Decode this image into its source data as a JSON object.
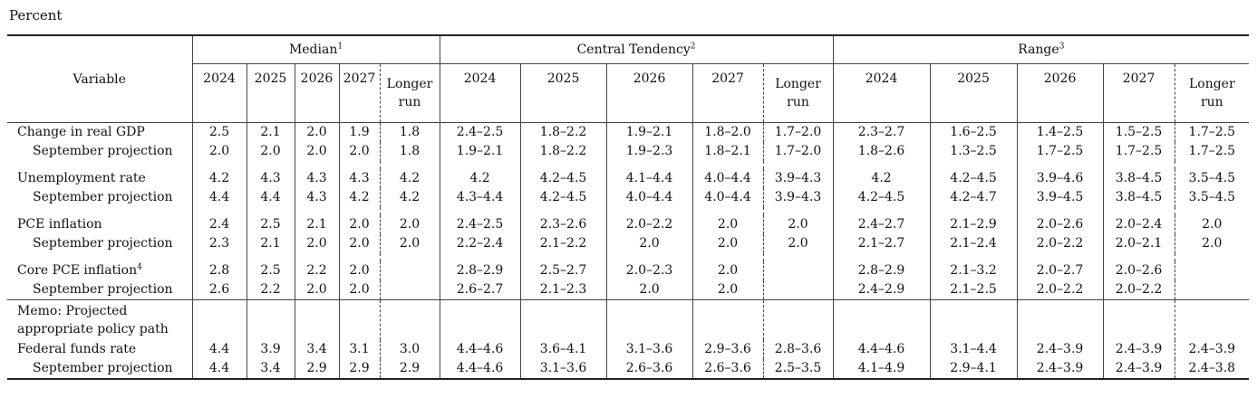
{
  "unit_label": "Percent",
  "headers": {
    "variable": "Variable",
    "median": "Median",
    "median_note": "1",
    "central_tendency": "Central Tendency",
    "central_tendency_note": "2",
    "range": "Range",
    "range_note": "3",
    "years": [
      "2024",
      "2025",
      "2026",
      "2027"
    ],
    "longer_run_line1": "Longer",
    "longer_run_line2": "run"
  },
  "rows": {
    "gdp": {
      "label": "Change in real GDP",
      "median": [
        "2.5",
        "2.1",
        "2.0",
        "1.9",
        "1.8"
      ],
      "central": [
        "2.4–2.5",
        "1.8–2.2",
        "1.9–2.1",
        "1.8–2.0",
        "1.7–2.0"
      ],
      "range": [
        "2.3–2.7",
        "1.6–2.5",
        "1.4–2.5",
        "1.5–2.5",
        "1.7–2.5"
      ]
    },
    "gdp_sep": {
      "label": "September projection",
      "median": [
        "2.0",
        "2.0",
        "2.0",
        "2.0",
        "1.8"
      ],
      "central": [
        "1.9–2.1",
        "1.8–2.2",
        "1.9–2.3",
        "1.8–2.1",
        "1.7–2.0"
      ],
      "range": [
        "1.8–2.6",
        "1.3–2.5",
        "1.7–2.5",
        "1.7–2.5",
        "1.7–2.5"
      ]
    },
    "unemp": {
      "label": "Unemployment rate",
      "median": [
        "4.2",
        "4.3",
        "4.3",
        "4.3",
        "4.2"
      ],
      "central": [
        "4.2",
        "4.2–4.5",
        "4.1–4.4",
        "4.0–4.4",
        "3.9–4.3"
      ],
      "range": [
        "4.2",
        "4.2–4.5",
        "3.9–4.6",
        "3.8–4.5",
        "3.5–4.5"
      ]
    },
    "unemp_sep": {
      "label": "September projection",
      "median": [
        "4.4",
        "4.4",
        "4.3",
        "4.2",
        "4.2"
      ],
      "central": [
        "4.3–4.4",
        "4.2–4.5",
        "4.0–4.4",
        "4.0–4.4",
        "3.9–4.3"
      ],
      "range": [
        "4.2–4.5",
        "4.2–4.7",
        "3.9–4.5",
        "3.8–4.5",
        "3.5–4.5"
      ]
    },
    "pce": {
      "label": "PCE inflation",
      "median": [
        "2.4",
        "2.5",
        "2.1",
        "2.0",
        "2.0"
      ],
      "central": [
        "2.4–2.5",
        "2.3–2.6",
        "2.0–2.2",
        "2.0",
        "2.0"
      ],
      "range": [
        "2.4–2.7",
        "2.1–2.9",
        "2.0–2.6",
        "2.0–2.4",
        "2.0"
      ]
    },
    "pce_sep": {
      "label": "September projection",
      "median": [
        "2.3",
        "2.1",
        "2.0",
        "2.0",
        "2.0"
      ],
      "central": [
        "2.2–2.4",
        "2.1–2.2",
        "2.0",
        "2.0",
        "2.0"
      ],
      "range": [
        "2.1–2.7",
        "2.1–2.4",
        "2.0–2.2",
        "2.0–2.1",
        "2.0"
      ]
    },
    "core": {
      "label": "Core PCE inflation",
      "note": "4",
      "median": [
        "2.8",
        "2.5",
        "2.2",
        "2.0",
        ""
      ],
      "central": [
        "2.8–2.9",
        "2.5–2.7",
        "2.0–2.3",
        "2.0",
        ""
      ],
      "range": [
        "2.8–2.9",
        "2.1–3.2",
        "2.0–2.7",
        "2.0–2.6",
        ""
      ]
    },
    "core_sep": {
      "label": "September projection",
      "median": [
        "2.6",
        "2.2",
        "2.0",
        "2.0",
        ""
      ],
      "central": [
        "2.6–2.7",
        "2.1–2.3",
        "2.0",
        "2.0",
        ""
      ],
      "range": [
        "2.4–2.9",
        "2.1–2.5",
        "2.0–2.2",
        "2.0–2.2",
        ""
      ]
    },
    "ffr": {
      "label": "Federal funds rate",
      "median": [
        "4.4",
        "3.9",
        "3.4",
        "3.1",
        "3.0"
      ],
      "central": [
        "4.4–4.6",
        "3.6–4.1",
        "3.1–3.6",
        "2.9–3.6",
        "2.8–3.6"
      ],
      "range": [
        "4.4–4.6",
        "3.1–4.4",
        "2.4–3.9",
        "2.4–3.9",
        "2.4–3.9"
      ]
    },
    "ffr_sep": {
      "label": "September projection",
      "median": [
        "4.4",
        "3.4",
        "2.9",
        "2.9",
        "2.9"
      ],
      "central": [
        "4.4–4.6",
        "3.1–3.6",
        "2.6–3.6",
        "2.6–3.6",
        "2.5–3.5"
      ],
      "range": [
        "4.1–4.9",
        "2.9–4.1",
        "2.4–3.9",
        "2.4–3.9",
        "2.4–3.8"
      ]
    }
  },
  "memo": {
    "line1": "Memo: Projected",
    "line2": "appropriate policy path"
  }
}
